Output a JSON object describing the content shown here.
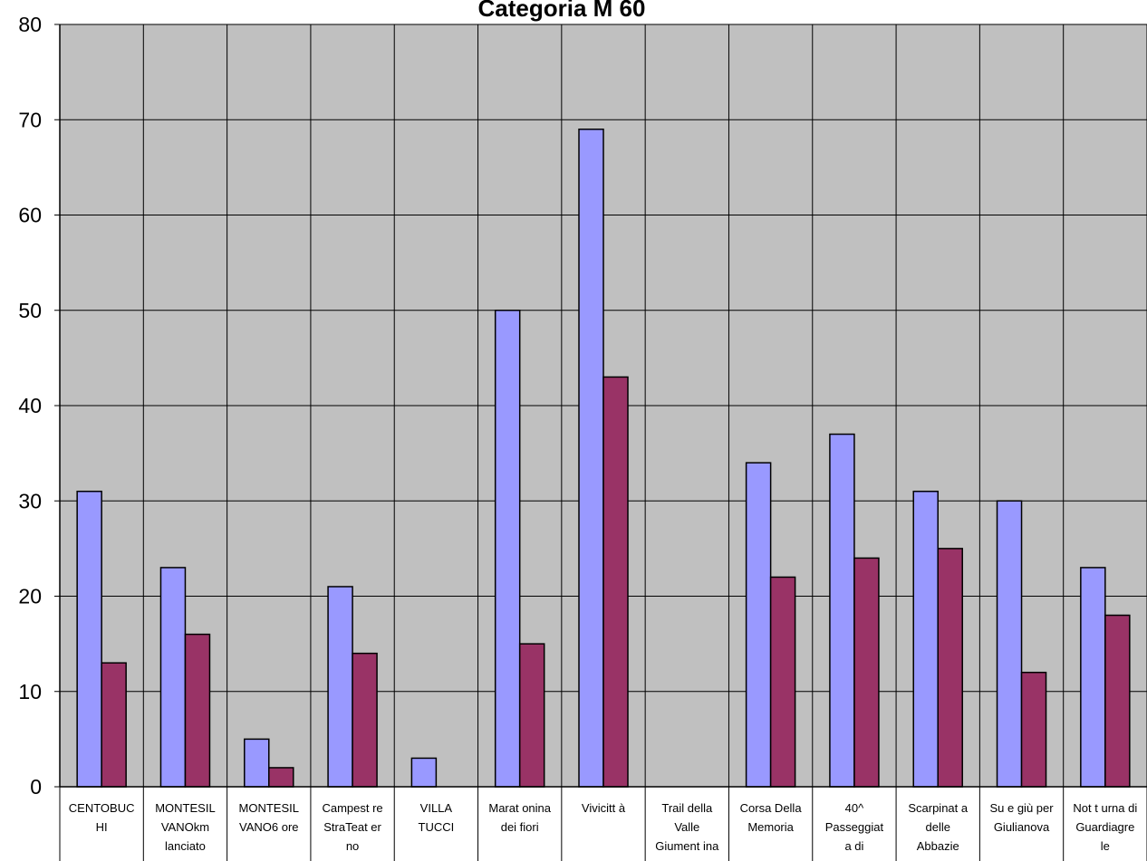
{
  "chart_data": {
    "type": "bar",
    "title": "Categoria M 60",
    "xlabel": "",
    "ylabel": "",
    "ylim": [
      0,
      80
    ],
    "yticks": [
      0,
      10,
      20,
      30,
      40,
      50,
      60,
      70,
      80
    ],
    "grid": true,
    "legend": "none",
    "categories": [
      [
        "CENTOBUC",
        "HI"
      ],
      [
        "MONTESIL",
        "VANOkm",
        "lanciato"
      ],
      [
        "MONTESIL",
        "VANO6 ore"
      ],
      [
        "Campest re",
        "StraTeat er",
        "no"
      ],
      [
        "VILLA",
        "TUCCI"
      ],
      [
        "Marat onina",
        "dei fiori"
      ],
      [
        "Vivicitt à"
      ],
      [
        "Trail della",
        "Valle",
        "Giument ina"
      ],
      [
        "Corsa Della",
        "Memoria"
      ],
      [
        "40^",
        "Passeggiat",
        "a di"
      ],
      [
        "Scarpinat a",
        "delle",
        "Abbazie"
      ],
      [
        "Su e giù per",
        "Giulianova"
      ],
      [
        "Not t urna di",
        "Guardiagre",
        "le"
      ]
    ],
    "series": [
      {
        "values": [
          31,
          23,
          5,
          21,
          3,
          50,
          69,
          0,
          34,
          37,
          31,
          30,
          23
        ],
        "color": "#9999ff"
      },
      {
        "values": [
          13,
          16,
          2,
          14,
          0,
          15,
          43,
          0,
          22,
          24,
          25,
          12,
          18
        ],
        "color": "#993366"
      }
    ],
    "plot_background": "#c0c0c0",
    "grid_color": "#000000"
  }
}
